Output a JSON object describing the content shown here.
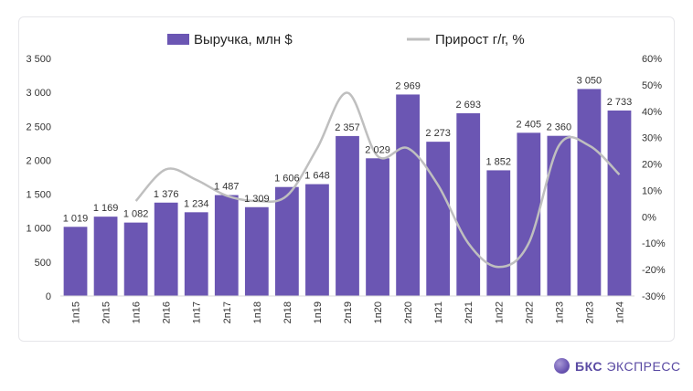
{
  "legend": {
    "bar_label": "Выручка, млн $",
    "line_label": "Прирост г/г, %"
  },
  "brand": {
    "name_bold": "БКС",
    "name_rest": "ЭКСПРЕСС"
  },
  "colors": {
    "bar": "#6b56b3",
    "line": "#bfbfbf"
  },
  "chart_data": {
    "type": "bar",
    "categories": [
      "1п15",
      "2п15",
      "1п16",
      "2п16",
      "1п17",
      "2п17",
      "1п18",
      "2п18",
      "1п19",
      "2п19",
      "1п20",
      "2п20",
      "1п21",
      "2п21",
      "1п22",
      "2п22",
      "1п23",
      "2п23",
      "1п24"
    ],
    "series": [
      {
        "name": "Выручка, млн $",
        "type": "bar",
        "axis": "left",
        "values": [
          1019,
          1169,
          1082,
          1376,
          1234,
          1487,
          1309,
          1606,
          1648,
          2357,
          2029,
          2969,
          2273,
          2693,
          1852,
          2405,
          2360,
          3050,
          2733
        ],
        "labels": [
          "1 019",
          "1 169",
          "1 082",
          "1 376",
          "1 234",
          "1 487",
          "1 309",
          "1 606",
          "1 648",
          "2 357",
          "2 029",
          "2 969",
          "2 273",
          "2 693",
          "1 852",
          "2 405",
          "2 360",
          "3 050",
          "2 733"
        ]
      },
      {
        "name": "Прирост г/г, %",
        "type": "line",
        "axis": "right",
        "values": [
          null,
          null,
          6,
          18,
          14,
          8,
          6,
          8,
          26,
          47,
          23,
          26,
          12,
          -10,
          -19,
          -10,
          27,
          27,
          16
        ]
      }
    ],
    "y_left": {
      "min": 0,
      "max": 3500,
      "step": 500,
      "tick_labels": [
        "0",
        "500",
        "1 000",
        "1 500",
        "2 000",
        "2 500",
        "3 000",
        "3 500"
      ]
    },
    "y_right": {
      "min": -30,
      "max": 60,
      "step": 10,
      "tick_labels": [
        "-30%",
        "-20%",
        "-10%",
        "0%",
        "10%",
        "20%",
        "30%",
        "40%",
        "50%",
        "60%"
      ]
    },
    "grid": false,
    "legend_position": "top"
  }
}
